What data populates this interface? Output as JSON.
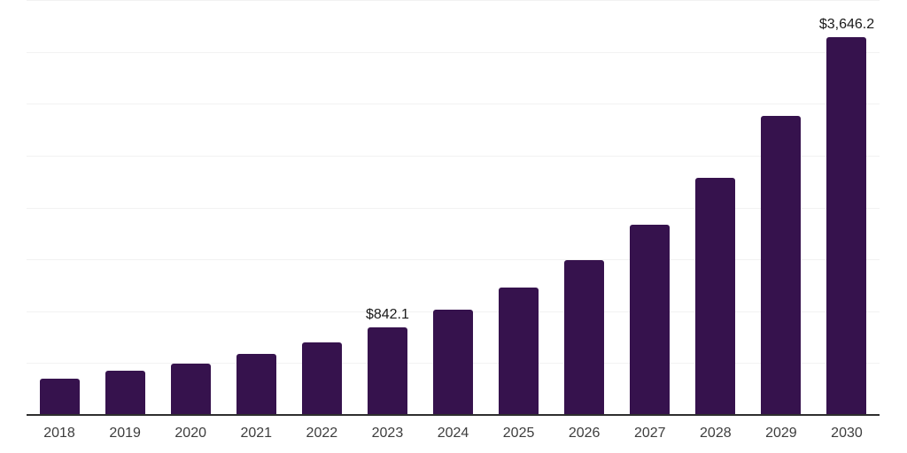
{
  "chart_data": {
    "type": "bar",
    "title": "",
    "categories": [
      "2018",
      "2019",
      "2020",
      "2021",
      "2022",
      "2023",
      "2024",
      "2025",
      "2026",
      "2027",
      "2028",
      "2029",
      "2030"
    ],
    "values": [
      350,
      425,
      497,
      590,
      700,
      842.1,
      1015,
      1230,
      1495,
      1835,
      2285,
      2880,
      3646.2
    ],
    "annotations": [
      {
        "category": "2023",
        "label": "$842.1"
      },
      {
        "category": "2030",
        "label": "$3,646.2"
      }
    ],
    "xlabel": "",
    "ylabel": "",
    "ylim": [
      0,
      4000
    ],
    "grid_step": 500,
    "grid": "horizontal",
    "legend_position": "none",
    "colors": {
      "bar": "#36124D",
      "gridline": "#f2f2f2",
      "axis_line": "#2e2e2e",
      "value_label": "#1a1a1a",
      "tick_label": "#3d3d3d",
      "background": "#ffffff"
    }
  }
}
